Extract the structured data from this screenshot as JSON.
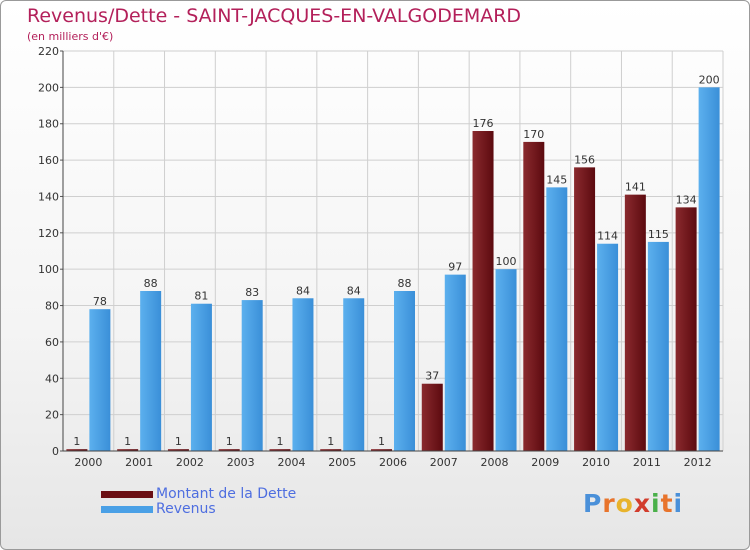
{
  "title": "Revenus/Dette - SAINT-JACQUES-EN-VALGODEMARD",
  "subtitle": "(en milliers d'€)",
  "logo": {
    "text": "Proxiti",
    "letters": [
      {
        "ch": "P",
        "color": "#4a90d9"
      },
      {
        "ch": "r",
        "color": "#e8742c"
      },
      {
        "ch": "o",
        "color": "#e8b32c"
      },
      {
        "ch": "x",
        "color": "#d23c2c"
      },
      {
        "ch": "i",
        "color": "#4ab04a"
      },
      {
        "ch": "t",
        "color": "#e8742c"
      },
      {
        "ch": "i",
        "color": "#4a90d9"
      }
    ]
  },
  "chart_data": {
    "type": "bar",
    "categories": [
      "2000",
      "2001",
      "2002",
      "2003",
      "2004",
      "2005",
      "2006",
      "2007",
      "2008",
      "2009",
      "2010",
      "2011",
      "2012"
    ],
    "series": [
      {
        "name": "Montant de la Dette",
        "color": "#6b0f14",
        "values": [
          1,
          1,
          1,
          1,
          1,
          1,
          1,
          37,
          176,
          170,
          156,
          141,
          134
        ]
      },
      {
        "name": "Revenus",
        "color": "#4aa0e6",
        "values": [
          78,
          88,
          81,
          83,
          84,
          84,
          88,
          97,
          100,
          145,
          114,
          115,
          200
        ]
      }
    ],
    "ylim": [
      0,
      220
    ],
    "yticks": [
      0,
      20,
      40,
      60,
      80,
      100,
      120,
      140,
      160,
      180,
      200,
      220
    ],
    "grid": true,
    "legend": "bottom-left"
  }
}
